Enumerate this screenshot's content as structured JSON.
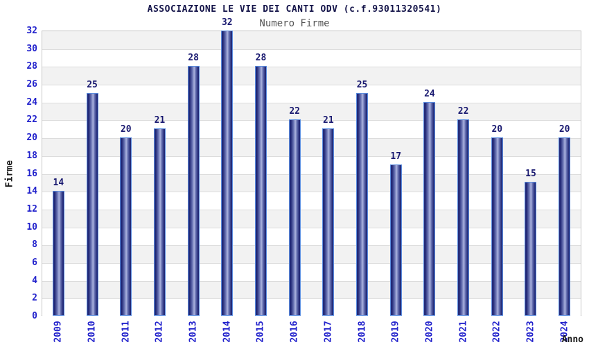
{
  "chart_data": {
    "type": "bar",
    "title": "ASSOCIAZIONE LE VIE DEI CANTI ODV (c.f.93011320541)",
    "subtitle": "Numero Firme",
    "xlabel": "Anno",
    "ylabel": "Firme",
    "categories": [
      "2009",
      "2010",
      "2011",
      "2012",
      "2013",
      "2014",
      "2015",
      "2016",
      "2017",
      "2018",
      "2019",
      "2020",
      "2021",
      "2022",
      "2023",
      "2024"
    ],
    "values": [
      14,
      25,
      20,
      21,
      28,
      32,
      28,
      22,
      21,
      25,
      17,
      24,
      22,
      20,
      15,
      20
    ],
    "ylim": [
      0,
      32
    ],
    "ytick_step": 2,
    "grid": true,
    "legend_position": "none",
    "value_labels_shown": true,
    "colors": {
      "bar_edge_dark": "#1d2472",
      "bar_mid": "#6a74b4",
      "bar_center_light": "#aab2de",
      "bar_outline": "#5c8ee0",
      "tick_label": "#2222cc",
      "value_label": "#191970",
      "title": "#15154a",
      "subtitle": "#555555",
      "axis_title": "#1a1a1a",
      "band_gray": "#f2f2f2",
      "band_white": "#ffffff",
      "gridline": "#dcdcdc",
      "plot_border": "#c6c6c6"
    }
  }
}
